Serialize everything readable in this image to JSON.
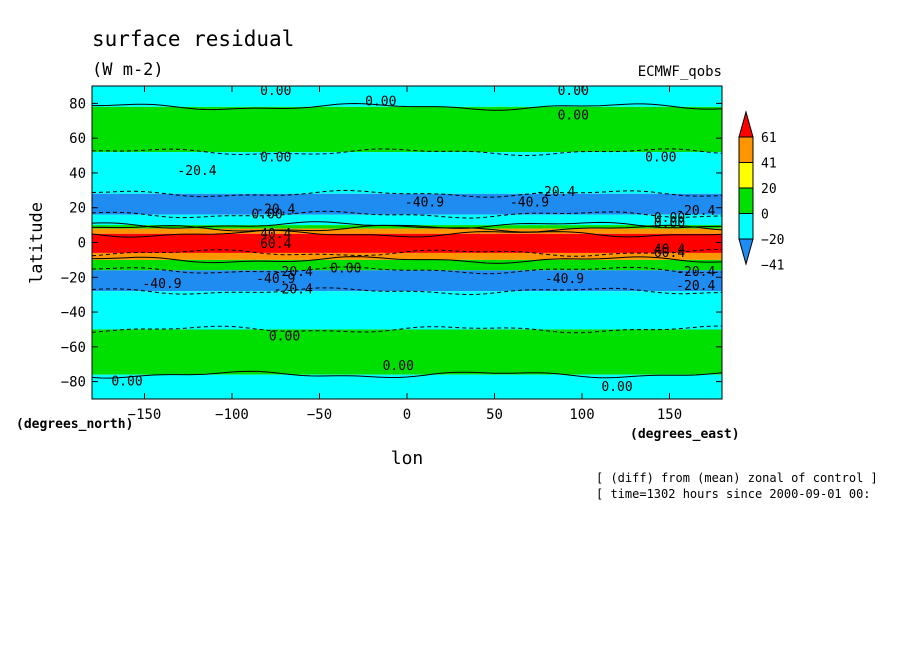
{
  "chart_data": {
    "type": "heatmap",
    "title": "surface residual",
    "units": "(W m-2)",
    "dataset": "ECMWF_qobs",
    "xlabel": "lon",
    "ylabel": "latitude",
    "x_unit_note": "(degrees_east)",
    "y_unit_note": "(degrees_north)",
    "xlim": [
      -180,
      180
    ],
    "ylim": [
      -90,
      90
    ],
    "x_ticks": [
      -150,
      -100,
      -50,
      0,
      50,
      100,
      150
    ],
    "x_tick_labels": [
      "−150",
      "−100",
      "−50",
      "0",
      "50",
      "100",
      "150"
    ],
    "y_ticks": [
      -80,
      -60,
      -40,
      -20,
      0,
      20,
      40,
      60,
      80
    ],
    "y_tick_labels": [
      "−80",
      "−60",
      "−40",
      "−20",
      "0",
      "20",
      "40",
      "60",
      "80"
    ],
    "colorbar": {
      "levels": [
        -41,
        -20,
        0,
        20,
        41,
        61
      ],
      "level_labels": [
        "−41",
        "−20",
        "0",
        "20",
        "41",
        "61"
      ],
      "colors": [
        "#1e8cf0",
        "#00ffff",
        "#00e000",
        "#ffff00",
        "#ff9600",
        "#ff0000"
      ]
    },
    "contour_levels_labeled": [
      "0.00",
      "-20.4",
      "-40.9",
      "40.4",
      "60.4"
    ],
    "zonal_bands": [
      {
        "lat": [
          78,
          90
        ],
        "class": "cyan"
      },
      {
        "lat": [
          52,
          78
        ],
        "class": "green"
      },
      {
        "lat": [
          28,
          52
        ],
        "class": "cyan"
      },
      {
        "lat": [
          16,
          28
        ],
        "class": "blue"
      },
      {
        "lat": [
          10,
          16
        ],
        "class": "cyan"
      },
      {
        "lat": [
          8,
          10
        ],
        "class": "green"
      },
      {
        "lat": [
          5,
          8
        ],
        "class": "orange"
      },
      {
        "lat": [
          -6,
          5
        ],
        "class": "red"
      },
      {
        "lat": [
          -10,
          -6
        ],
        "class": "orange"
      },
      {
        "lat": [
          -16,
          -10
        ],
        "class": "green"
      },
      {
        "lat": [
          -28,
          -16
        ],
        "class": "blue"
      },
      {
        "lat": [
          -50,
          -28
        ],
        "class": "cyan"
      },
      {
        "lat": [
          -76,
          -50
        ],
        "class": "green"
      },
      {
        "lat": [
          -90,
          -76
        ],
        "class": "cyan"
      }
    ],
    "contour_annotations": [
      {
        "text": "0.00",
        "lon": -75,
        "lat": 87
      },
      {
        "text": "0.00",
        "lon": -15,
        "lat": 81
      },
      {
        "text": "0.00",
        "lon": 95,
        "lat": 87
      },
      {
        "text": "0.00",
        "lon": 95,
        "lat": 73
      },
      {
        "text": "0.00",
        "lon": -75,
        "lat": 49
      },
      {
        "text": "0.00",
        "lon": 145,
        "lat": 49
      },
      {
        "text": "-20.4",
        "lon": -120,
        "lat": 41
      },
      {
        "text": "-20.4",
        "lon": 85,
        "lat": 29
      },
      {
        "text": "-40.9",
        "lon": 10,
        "lat": 23
      },
      {
        "text": "-40.9",
        "lon": 70,
        "lat": 23
      },
      {
        "text": "-20.4",
        "lon": 165,
        "lat": 18
      },
      {
        "text": "0.00",
        "lon": -80,
        "lat": 16
      },
      {
        "text": "-20.4",
        "lon": -75,
        "lat": 19
      },
      {
        "text": "0.00",
        "lon": 150,
        "lat": 14
      },
      {
        "text": "0.00",
        "lon": 150,
        "lat": 11
      },
      {
        "text": "40.4",
        "lon": -75,
        "lat": 5
      },
      {
        "text": "60.4",
        "lon": -75,
        "lat": -1
      },
      {
        "text": "40.4",
        "lon": 150,
        "lat": -4
      },
      {
        "text": "60.4",
        "lon": 150,
        "lat": -6
      },
      {
        "text": "0.00",
        "lon": -35,
        "lat": -15
      },
      {
        "text": "-20.4",
        "lon": -65,
        "lat": -17
      },
      {
        "text": "-40.9",
        "lon": -75,
        "lat": -21
      },
      {
        "text": "-20.4",
        "lon": -65,
        "lat": -27
      },
      {
        "text": "-40.9",
        "lon": -140,
        "lat": -24
      },
      {
        "text": "-40.9",
        "lon": 90,
        "lat": -21
      },
      {
        "text": "-20.4",
        "lon": 165,
        "lat": -17
      },
      {
        "text": "-20.4",
        "lon": 165,
        "lat": -25
      },
      {
        "text": "0.00",
        "lon": -70,
        "lat": -54
      },
      {
        "text": "0.00",
        "lon": -5,
        "lat": -71
      },
      {
        "text": "0.00",
        "lon": -160,
        "lat": -80
      },
      {
        "text": "0.00",
        "lon": 120,
        "lat": -83
      }
    ],
    "grid": false,
    "legend_placement": "right"
  },
  "footer": {
    "line1": "[ (diff) from (mean) zonal of control ]",
    "line2": "[ time=1302 hours since 2000-09-01 00:"
  }
}
